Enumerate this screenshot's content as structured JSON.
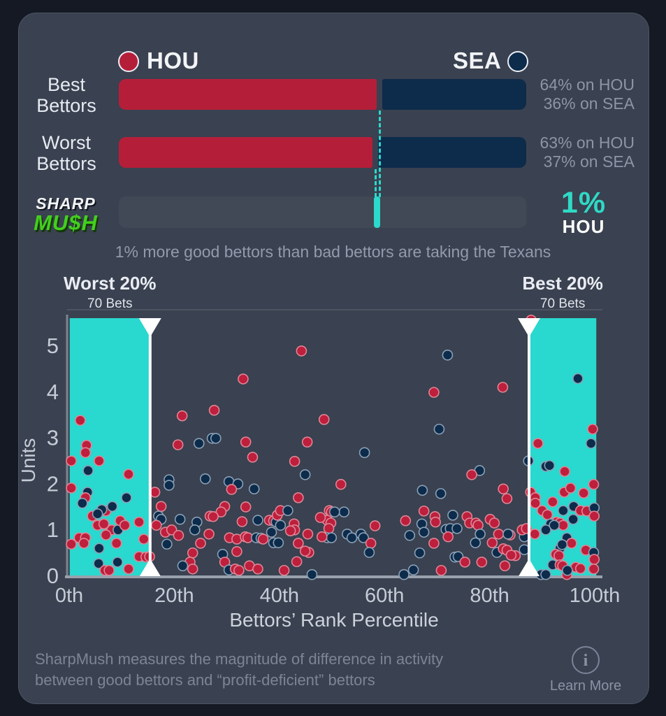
{
  "colors": {
    "page_bg": "#141923",
    "card_bg": "#3a4150",
    "hou_red": "#b51e39",
    "sea_navy": "#0d2b4b",
    "teal_accent": "#2bd9cd",
    "band_teal": "#29d8ce",
    "logo_green": "#43cf1e",
    "muted_text": "#8d95a6"
  },
  "matchup": {
    "legend": {
      "hou": "HOU",
      "sea": "SEA"
    },
    "rows": [
      {
        "label_line1": "Best",
        "label_line2": "Bettors",
        "hou_pct": 64,
        "sea_pct": 36,
        "note1": "64% on HOU",
        "note2": "36% on SEA"
      },
      {
        "label_line1": "Worst",
        "label_line2": "Bettors",
        "hou_pct": 63,
        "sea_pct": 37,
        "note1": "63% on HOU",
        "note2": "37% on SEA"
      }
    ],
    "sharpmush_row": {
      "logo_line1": "SHARP",
      "logo_line2": "MU$H",
      "value": "1%",
      "team": "HOU",
      "marker_pct": 63.3
    },
    "caption": "1% more good bettors than bad bettors are taking the Texans"
  },
  "chart_data": {
    "type": "scatter",
    "xlabel": "Bettors’ Rank Percentile",
    "ylabel": "Units",
    "xlim": [
      0,
      100
    ],
    "ylim": [
      0,
      5.6
    ],
    "grid": false,
    "legend_position": "none",
    "x_ticks": [
      "0th",
      "20th",
      "40th",
      "60th",
      "80th",
      "100th"
    ],
    "x_tick_values": [
      0,
      20,
      40,
      60,
      80,
      100
    ],
    "y_ticks": [
      0,
      1,
      2,
      3,
      4,
      5
    ],
    "band_color": "#29d8ce",
    "bands": [
      {
        "label": "Worst 20%",
        "sub": "70 Bets",
        "from": 0.1,
        "to": 15.4,
        "edge": "right"
      },
      {
        "label": "Best 20%",
        "sub": "70 Bets",
        "from": 87.5,
        "to": 100.3,
        "edge": "left"
      }
    ],
    "series_legend": {
      "H": "HOU",
      "S": "SEA"
    },
    "point_colors": {
      "HOU": {
        "fill": "#bd1f3c",
        "stroke": "#de8696"
      },
      "SEA": {
        "fill": "#0d2b4b",
        "stroke": "#8aa0b5"
      }
    },
    "points": [
      [
        2.1,
        3.37,
        "H"
      ],
      [
        3.3,
        2.83,
        "H"
      ],
      [
        0.4,
        2.49,
        "H"
      ],
      [
        3.1,
        2.67,
        "H"
      ],
      [
        5.7,
        2.49,
        "H"
      ],
      [
        3.6,
        2.28,
        "S"
      ],
      [
        11.3,
        2.2,
        "H"
      ],
      [
        0.4,
        1.9,
        "H"
      ],
      [
        3.5,
        1.81,
        "S"
      ],
      [
        3.1,
        1.69,
        "H"
      ],
      [
        2.5,
        1.57,
        "S"
      ],
      [
        7.0,
        1.4,
        "H"
      ],
      [
        6.2,
        1.43,
        "S"
      ],
      [
        8.2,
        1.5,
        "S"
      ],
      [
        10.9,
        1.69,
        "S"
      ],
      [
        4.4,
        1.29,
        "H"
      ],
      [
        5.4,
        1.34,
        "S"
      ],
      [
        5.4,
        1.09,
        "H"
      ],
      [
        6.6,
        1.12,
        "H"
      ],
      [
        8.1,
        0.99,
        "H"
      ],
      [
        9.3,
        0.99,
        "S"
      ],
      [
        9.7,
        1.19,
        "H"
      ],
      [
        10.6,
        1.09,
        "H"
      ],
      [
        7.0,
        0.88,
        "H"
      ],
      [
        13.3,
        1.16,
        "H"
      ],
      [
        1.9,
        0.82,
        "H"
      ],
      [
        3.1,
        0.82,
        "H"
      ],
      [
        2.8,
        0.7,
        "H"
      ],
      [
        0.4,
        0.68,
        "H"
      ],
      [
        5.7,
        0.59,
        "S"
      ],
      [
        9.0,
        0.7,
        "H"
      ],
      [
        9.2,
        0.29,
        "S"
      ],
      [
        5.6,
        0.26,
        "S"
      ],
      [
        6.8,
        0.11,
        "H"
      ],
      [
        7.6,
        0.11,
        "H"
      ],
      [
        11.3,
        0.14,
        "H"
      ],
      [
        13.3,
        0.41,
        "H"
      ],
      [
        14.6,
        0.4,
        "H"
      ],
      [
        15.3,
        0.41,
        "H"
      ],
      [
        14.2,
        0.79,
        "H"
      ],
      [
        21.5,
        3.47,
        "H"
      ],
      [
        20.7,
        2.84,
        "H"
      ],
      [
        24.7,
        2.87,
        "S"
      ],
      [
        16.3,
        1.81,
        "H"
      ],
      [
        17.5,
        1.5,
        "H"
      ],
      [
        17.0,
        1.29,
        "S"
      ],
      [
        17.5,
        1.22,
        "S"
      ],
      [
        16.6,
        1.09,
        "H"
      ],
      [
        18.3,
        0.94,
        "H"
      ],
      [
        19.5,
        0.99,
        "H"
      ],
      [
        20.8,
        0.87,
        "H"
      ],
      [
        18.6,
        0.68,
        "S"
      ],
      [
        19.0,
        2.08,
        "S"
      ],
      [
        19.0,
        1.96,
        "S"
      ],
      [
        21.1,
        1.22,
        "S"
      ],
      [
        24.3,
        1.16,
        "S"
      ],
      [
        23.9,
        0.99,
        "S"
      ],
      [
        25.0,
        0.7,
        "H"
      ],
      [
        23.5,
        0.49,
        "H"
      ],
      [
        23.0,
        0.29,
        "H"
      ],
      [
        21.6,
        0.21,
        "S"
      ],
      [
        23.5,
        0.14,
        "H"
      ],
      [
        44.2,
        4.88,
        "H"
      ],
      [
        33.1,
        4.27,
        "H"
      ],
      [
        27.6,
        3.59,
        "H"
      ],
      [
        48.5,
        3.39,
        "H"
      ],
      [
        27.2,
        2.98,
        "S"
      ],
      [
        27.9,
        2.98,
        "S"
      ],
      [
        33.6,
        2.9,
        "H"
      ],
      [
        45.3,
        2.9,
        "H"
      ],
      [
        72.0,
        4.79,
        "S"
      ],
      [
        69.4,
        3.98,
        "H"
      ],
      [
        70.4,
        3.18,
        "S"
      ],
      [
        87.9,
        5.55,
        "H"
      ],
      [
        96.8,
        4.28,
        "S"
      ],
      [
        82.5,
        4.09,
        "H"
      ],
      [
        99.6,
        3.18,
        "H"
      ],
      [
        89.2,
        2.87,
        "H"
      ],
      [
        99.3,
        2.87,
        "S"
      ],
      [
        34.9,
        2.57,
        "H"
      ],
      [
        42.9,
        2.48,
        "H"
      ],
      [
        44.9,
        2.19,
        "S"
      ],
      [
        25.9,
        2.1,
        "S"
      ],
      [
        30.4,
        2.04,
        "S"
      ],
      [
        32.1,
        1.99,
        "S"
      ],
      [
        30.9,
        1.87,
        "H"
      ],
      [
        35.2,
        1.88,
        "S"
      ],
      [
        43.6,
        1.69,
        "H"
      ],
      [
        29.6,
        1.5,
        "H"
      ],
      [
        33.6,
        1.49,
        "H"
      ],
      [
        28.9,
        1.38,
        "H"
      ],
      [
        26.8,
        1.29,
        "H"
      ],
      [
        27.4,
        1.28,
        "H"
      ],
      [
        32.9,
        1.17,
        "H"
      ],
      [
        35.9,
        1.2,
        "S"
      ],
      [
        38.1,
        1.2,
        "H"
      ],
      [
        38.9,
        1.19,
        "H"
      ],
      [
        39.4,
        1.16,
        "S"
      ],
      [
        39.6,
        1.31,
        "H"
      ],
      [
        40.2,
        1.41,
        "H"
      ],
      [
        41.6,
        1.41,
        "S"
      ],
      [
        40.2,
        1.09,
        "S"
      ],
      [
        42.8,
        1.12,
        "H"
      ],
      [
        42.9,
        0.99,
        "H"
      ],
      [
        42.1,
        0.97,
        "H"
      ],
      [
        38.5,
        0.94,
        "S"
      ],
      [
        26.6,
        0.9,
        "H"
      ],
      [
        30.5,
        0.82,
        "H"
      ],
      [
        31.9,
        0.79,
        "H"
      ],
      [
        33.5,
        0.84,
        "H"
      ],
      [
        34.0,
        0.82,
        "H"
      ],
      [
        35.6,
        0.82,
        "S"
      ],
      [
        36.5,
        0.81,
        "S"
      ],
      [
        36.9,
        0.79,
        "H"
      ],
      [
        38.9,
        0.71,
        "S"
      ],
      [
        39.8,
        0.71,
        "S"
      ],
      [
        43.6,
        0.7,
        "H"
      ],
      [
        45.4,
        0.9,
        "H"
      ],
      [
        45.6,
        0.5,
        "H"
      ],
      [
        44.9,
        0.53,
        "H"
      ],
      [
        29.2,
        0.46,
        "S"
      ],
      [
        31.9,
        0.52,
        "H"
      ],
      [
        29.6,
        0.29,
        "H"
      ],
      [
        30.4,
        0.12,
        "S"
      ],
      [
        31.6,
        0.14,
        "H"
      ],
      [
        32.3,
        0.11,
        "H"
      ],
      [
        34.3,
        0.21,
        "H"
      ],
      [
        35.9,
        0.14,
        "H"
      ],
      [
        40.9,
        0.11,
        "H"
      ],
      [
        46.2,
        0.02,
        "S"
      ],
      [
        43.3,
        0.3,
        "H"
      ],
      [
        49.5,
        1.41,
        "H"
      ],
      [
        49.9,
        1.38,
        "H"
      ],
      [
        49.1,
        1.2,
        "H"
      ],
      [
        49.8,
        1.14,
        "H"
      ],
      [
        49.4,
        1.02,
        "H"
      ],
      [
        47.8,
        1.26,
        "H"
      ],
      [
        49.1,
        0.82,
        "S"
      ],
      [
        49.9,
        0.82,
        "S"
      ],
      [
        48.1,
        0.84,
        "H"
      ],
      [
        56.2,
        2.67,
        "S"
      ],
      [
        51.7,
        1.98,
        "H"
      ],
      [
        67.2,
        1.85,
        "S"
      ],
      [
        70.7,
        1.78,
        "S"
      ],
      [
        52.3,
        1.38,
        "S"
      ],
      [
        50.5,
        1.38,
        "S"
      ],
      [
        67.5,
        1.4,
        "H"
      ],
      [
        69.6,
        1.28,
        "H"
      ],
      [
        69.7,
        1.16,
        "H"
      ],
      [
        73.0,
        1.31,
        "S"
      ],
      [
        64.0,
        1.19,
        "H"
      ],
      [
        67.1,
        1.12,
        "S"
      ],
      [
        58.2,
        1.08,
        "H"
      ],
      [
        71.7,
        1.0,
        "S"
      ],
      [
        72.5,
        1.02,
        "S"
      ],
      [
        73.8,
        1.02,
        "S"
      ],
      [
        67.5,
        0.94,
        "S"
      ],
      [
        64.8,
        0.87,
        "S"
      ],
      [
        52.9,
        0.9,
        "S"
      ],
      [
        53.8,
        0.82,
        "S"
      ],
      [
        55.5,
        0.9,
        "S"
      ],
      [
        56.0,
        0.82,
        "S"
      ],
      [
        57.4,
        0.7,
        "H"
      ],
      [
        72.1,
        0.84,
        "H"
      ],
      [
        69.4,
        0.7,
        "H"
      ],
      [
        57.1,
        0.5,
        "S"
      ],
      [
        66.7,
        0.49,
        "S"
      ],
      [
        73.4,
        0.4,
        "S"
      ],
      [
        74.0,
        0.41,
        "S"
      ],
      [
        75.3,
        0.29,
        "H"
      ],
      [
        63.7,
        0.02,
        "S"
      ],
      [
        65.5,
        0.12,
        "S"
      ],
      [
        70.8,
        0.11,
        "H"
      ],
      [
        78.1,
        2.28,
        "S"
      ],
      [
        76.6,
        2.19,
        "H"
      ],
      [
        82.6,
        1.88,
        "H"
      ],
      [
        83.3,
        1.67,
        "H"
      ],
      [
        75.7,
        1.28,
        "H"
      ],
      [
        76.2,
        1.14,
        "H"
      ],
      [
        77.4,
        1.14,
        "H"
      ],
      [
        77.8,
        1.09,
        "H"
      ],
      [
        80.1,
        1.22,
        "H"
      ],
      [
        80.9,
        1.14,
        "H"
      ],
      [
        77.3,
        0.71,
        "S"
      ],
      [
        78.2,
        0.9,
        "S"
      ],
      [
        81.7,
        0.9,
        "H"
      ],
      [
        83.9,
        0.88,
        "H"
      ],
      [
        83.5,
        0.9,
        "S"
      ],
      [
        80.5,
        0.71,
        "H"
      ],
      [
        81.4,
        0.5,
        "S"
      ],
      [
        82.6,
        0.58,
        "H"
      ],
      [
        83.3,
        0.55,
        "H"
      ],
      [
        84.9,
        0.43,
        "H"
      ],
      [
        84.1,
        0.44,
        "H"
      ],
      [
        78.5,
        0.29,
        "H"
      ],
      [
        82.9,
        0.21,
        "H"
      ],
      [
        86.6,
        0.56,
        "S"
      ],
      [
        86.6,
        0.84,
        "S"
      ],
      [
        86.2,
        0.99,
        "H"
      ],
      [
        87.0,
        1.02,
        "H"
      ],
      [
        87.4,
        2.49,
        "S"
      ],
      [
        90.7,
        2.37,
        "S"
      ],
      [
        91.4,
        2.39,
        "S"
      ],
      [
        94.3,
        2.26,
        "H"
      ],
      [
        99.8,
        1.98,
        "H"
      ],
      [
        87.8,
        1.81,
        "H"
      ],
      [
        88.7,
        1.69,
        "H"
      ],
      [
        94.2,
        1.81,
        "H"
      ],
      [
        95.4,
        1.9,
        "H"
      ],
      [
        97.9,
        1.79,
        "H"
      ],
      [
        88.7,
        1.57,
        "H"
      ],
      [
        92.0,
        1.6,
        "H"
      ],
      [
        94.0,
        1.41,
        "S"
      ],
      [
        96.0,
        1.5,
        "S"
      ],
      [
        90.0,
        1.41,
        "H"
      ],
      [
        91.0,
        1.32,
        "H"
      ],
      [
        97.3,
        1.41,
        "H"
      ],
      [
        98.5,
        1.4,
        "H"
      ],
      [
        99.9,
        1.47,
        "S"
      ],
      [
        99.9,
        1.29,
        "H"
      ],
      [
        95.9,
        1.22,
        "S"
      ],
      [
        92.7,
        1.16,
        "H"
      ],
      [
        93.4,
        1.14,
        "H"
      ],
      [
        94.0,
        1.09,
        "H"
      ],
      [
        91.6,
        1.12,
        "S"
      ],
      [
        92.3,
        1.09,
        "S"
      ],
      [
        90.7,
        0.99,
        "S"
      ],
      [
        88.6,
        0.9,
        "H"
      ],
      [
        94.7,
        0.82,
        "S"
      ],
      [
        95.6,
        0.7,
        "H"
      ],
      [
        93.4,
        0.59,
        "S"
      ],
      [
        93.8,
        0.67,
        "S"
      ],
      [
        92.6,
        0.46,
        "H"
      ],
      [
        93.2,
        0.43,
        "H"
      ],
      [
        92.0,
        0.23,
        "S"
      ],
      [
        93.4,
        0.23,
        "H"
      ],
      [
        93.9,
        0.21,
        "H"
      ],
      [
        89.8,
        0.02,
        "S"
      ],
      [
        90.7,
        0.02,
        "S"
      ],
      [
        96.4,
        0.18,
        "H"
      ],
      [
        97.3,
        0.15,
        "H"
      ],
      [
        98.3,
        0.55,
        "H"
      ],
      [
        99.8,
        0.5,
        "S"
      ],
      [
        99.9,
        0.35,
        "H"
      ],
      [
        99.8,
        0.14,
        "H"
      ],
      [
        94.7,
        0.02,
        "H"
      ],
      [
        94.8,
        0.11,
        "S"
      ]
    ]
  },
  "footer": {
    "line1": "SharpMush measures the magnitude of difference in activity",
    "line2": "between good bettors and “profit-deficient” bettors",
    "info_glyph": "i",
    "learn_more": "Learn More"
  }
}
